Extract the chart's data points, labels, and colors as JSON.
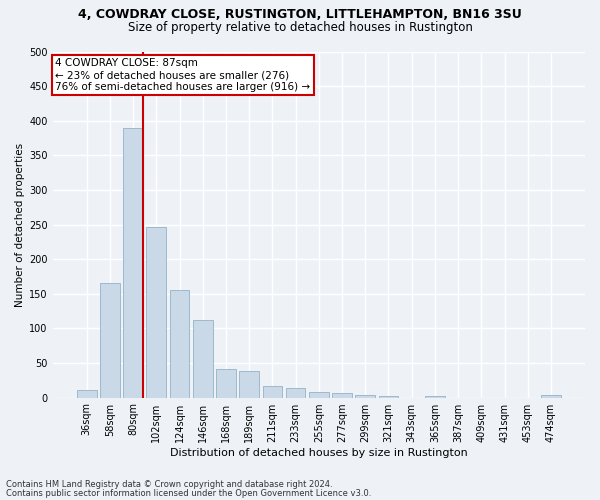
{
  "title1": "4, COWDRAY CLOSE, RUSTINGTON, LITTLEHAMPTON, BN16 3SU",
  "title2": "Size of property relative to detached houses in Rustington",
  "xlabel": "Distribution of detached houses by size in Rustington",
  "ylabel": "Number of detached properties",
  "footnote1": "Contains HM Land Registry data © Crown copyright and database right 2024.",
  "footnote2": "Contains public sector information licensed under the Open Government Licence v3.0.",
  "bar_labels": [
    "36sqm",
    "58sqm",
    "80sqm",
    "102sqm",
    "124sqm",
    "146sqm",
    "168sqm",
    "189sqm",
    "211sqm",
    "233sqm",
    "255sqm",
    "277sqm",
    "299sqm",
    "321sqm",
    "343sqm",
    "365sqm",
    "387sqm",
    "409sqm",
    "431sqm",
    "453sqm",
    "474sqm"
  ],
  "bar_values": [
    11,
    165,
    390,
    247,
    155,
    112,
    42,
    38,
    17,
    14,
    8,
    6,
    4,
    3,
    0,
    3,
    0,
    0,
    0,
    0,
    4
  ],
  "bar_color": "#c9d9e8",
  "bar_edgecolor": "#a0b8cc",
  "annotation_text1": "4 COWDRAY CLOSE: 87sqm",
  "annotation_text2": "← 23% of detached houses are smaller (276)",
  "annotation_text3": "76% of semi-detached houses are larger (916) →",
  "annotation_box_color": "#ffffff",
  "annotation_box_edgecolor": "#cc0000",
  "line_color": "#cc0000",
  "ylim": [
    0,
    500
  ],
  "yticks": [
    0,
    50,
    100,
    150,
    200,
    250,
    300,
    350,
    400,
    450,
    500
  ],
  "bg_color": "#eef2f7",
  "grid_color": "#ffffff",
  "title1_fontsize": 9,
  "title2_fontsize": 8.5,
  "xlabel_fontsize": 8,
  "ylabel_fontsize": 7.5,
  "tick_fontsize": 7,
  "footnote_fontsize": 6,
  "ann_fontsize": 7.5
}
